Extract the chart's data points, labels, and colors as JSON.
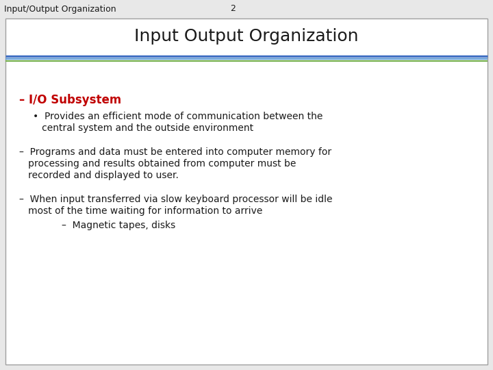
{
  "slide_title": "Input Output Organization",
  "header_left": "Input/Output Organization",
  "header_center": "2",
  "bg_color": "#e8e8e8",
  "slide_bg": "#ffffff",
  "header_bg": "#e8e8e8",
  "border_color": "#a0a0a0",
  "title_fontsize": 18,
  "header_fontsize": 9,
  "body_fontsize": 10,
  "small_fontsize": 9.5,
  "bullet1_label": "– I/O Subsystem",
  "bullet1_color": "#c00000",
  "bullet1_fontsize": 12,
  "subbullet1_line1": "•  Provides an efficient mode of communication between the",
  "subbullet1_line2": "   central system and the outside environment",
  "bullet2_line1": "–  Programs and data must be entered into computer memory for",
  "bullet2_line2": "   processing and results obtained from computer must be",
  "bullet2_line3": "   recorded and displayed to user.",
  "bullet3_line1": "–  When input transferred via slow keyboard processor will be idle",
  "bullet3_line2": "   most of the time waiting for information to arrive",
  "bullet3b": "–  Magnetic tapes, disks",
  "text_color": "#1a1a1a",
  "line1_color": "#4472c4",
  "line2_color": "#5b9bd5",
  "line3_color": "#70ad47"
}
